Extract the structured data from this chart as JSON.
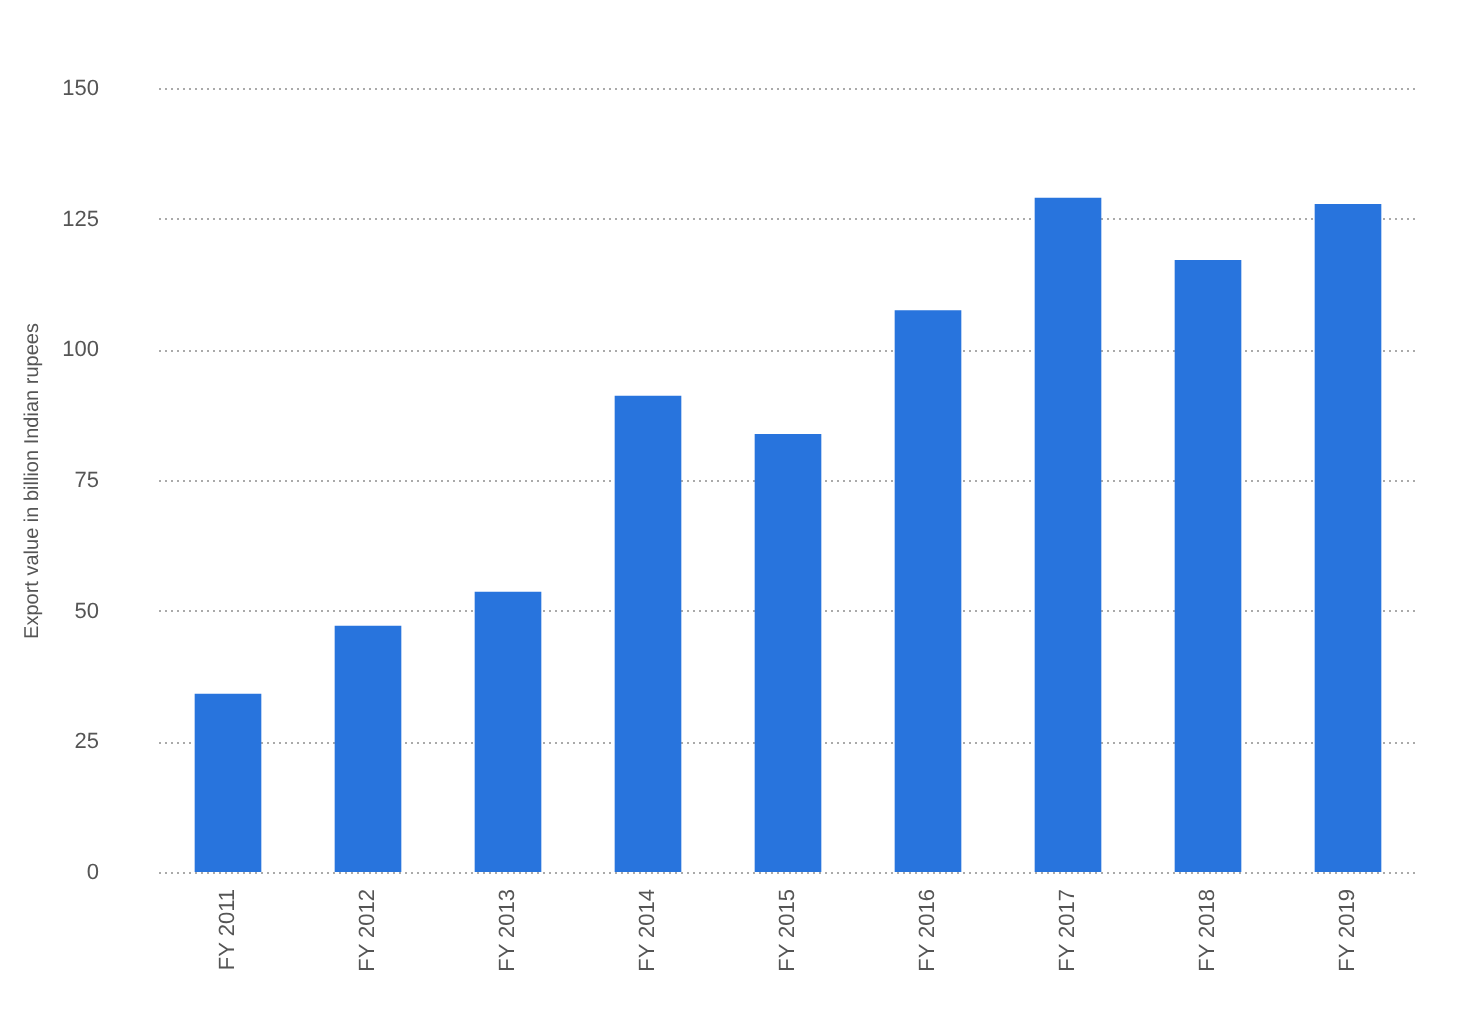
{
  "chart_data": {
    "type": "bar",
    "ylabel": "Export value in billion Indian rupees",
    "categories": [
      "FY 2011",
      "FY 2012",
      "FY 2013",
      "FY 2014",
      "FY 2015",
      "FY 2016",
      "FY 2017",
      "FY 2018",
      "FY 2019"
    ],
    "values": [
      34.1,
      47.1,
      53.6,
      91.1,
      83.8,
      107.5,
      129,
      117.1,
      127.8
    ],
    "color": "#2874dd",
    "ylim": [
      0,
      150
    ],
    "yticks": [
      0,
      25,
      50,
      75,
      100,
      125,
      150
    ],
    "grid": "y"
  }
}
